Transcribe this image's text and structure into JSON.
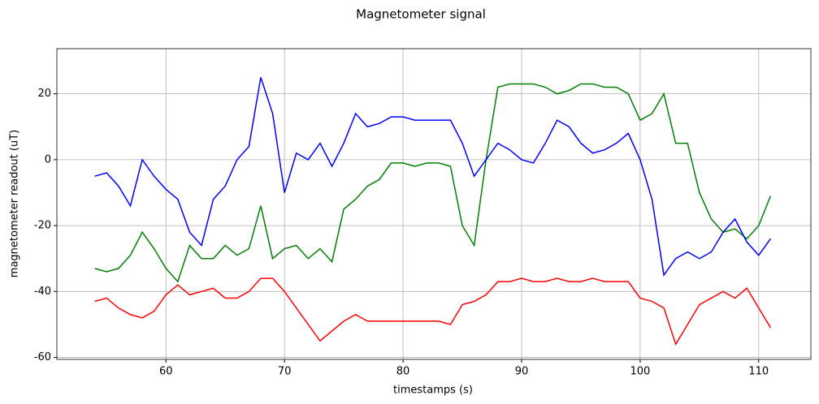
{
  "chart_data": {
    "type": "line",
    "title": "Magnetometer signal",
    "x_label": "timestamps (s)",
    "y_label": "magnetometer readout (uT)",
    "x": [
      54,
      55,
      56,
      57,
      58,
      59,
      60,
      61,
      62,
      63,
      64,
      65,
      66,
      67,
      68,
      69,
      70,
      71,
      72,
      73,
      74,
      75,
      76,
      77,
      78,
      79,
      80,
      81,
      82,
      83,
      84,
      85,
      86,
      87,
      88,
      89,
      90,
      91,
      92,
      93,
      94,
      95,
      96,
      97,
      98,
      99,
      100,
      101,
      102,
      103,
      104,
      105,
      106,
      107,
      108,
      109,
      110,
      111
    ],
    "series": [
      {
        "color": "#ff0000",
        "values": [
          -43,
          -42,
          -45,
          -47,
          -48,
          -46,
          -41,
          -38,
          -41,
          -40,
          -39,
          -42,
          -42,
          -40,
          -36,
          -36,
          -40,
          -45,
          -50,
          -55,
          -52,
          -49,
          -47,
          -49,
          -49,
          -49,
          -49,
          -49,
          -49,
          -49,
          -50,
          -44,
          -43,
          -41,
          -37,
          -37,
          -36,
          -37,
          -37,
          -36,
          -37,
          -37,
          -36,
          -37,
          -37,
          -37,
          -42,
          -43,
          -45,
          -56,
          -50,
          -44,
          -42,
          -40,
          -42,
          -39,
          -45,
          -51
        ]
      },
      {
        "color": "#008000",
        "values": [
          -33,
          -34,
          -33,
          -29,
          -22,
          -27,
          -33,
          -37,
          -26,
          -30,
          -30,
          -26,
          -29,
          -27,
          -14,
          -30,
          -27,
          -26,
          -30,
          -27,
          -31,
          -15,
          -12,
          -8,
          -6,
          -1,
          -1,
          -2,
          -1,
          -1,
          -2,
          -20,
          -26,
          0,
          22,
          23,
          23,
          23,
          22,
          20,
          21,
          23,
          23,
          22,
          22,
          20,
          12,
          14,
          20,
          5,
          5,
          -10,
          -18,
          -22,
          -21,
          -24,
          -20,
          -11
        ]
      },
      {
        "color": "#0000ff",
        "values": [
          -5,
          -4,
          -8,
          -14,
          0,
          -5,
          -9,
          -12,
          -22,
          -26,
          -12,
          -8,
          0,
          4,
          25,
          14,
          -10,
          2,
          0,
          5,
          -2,
          5,
          14,
          10,
          11,
          13,
          13,
          12,
          12,
          12,
          12,
          5,
          -5,
          0,
          5,
          3,
          0,
          -1,
          5,
          12,
          10,
          5,
          2,
          3,
          5,
          8,
          0,
          -12,
          -35,
          -30,
          -28,
          -30,
          -28,
          -22,
          -18,
          -25,
          -29,
          -24
        ]
      }
    ],
    "xlim": [
      50.8,
      114.4
    ],
    "ylim": [
      -60.6,
      33.7
    ],
    "xticks": [
      60,
      70,
      80,
      90,
      100,
      110
    ],
    "yticks": [
      -60,
      -40,
      -20,
      0,
      20
    ],
    "grid": true
  }
}
